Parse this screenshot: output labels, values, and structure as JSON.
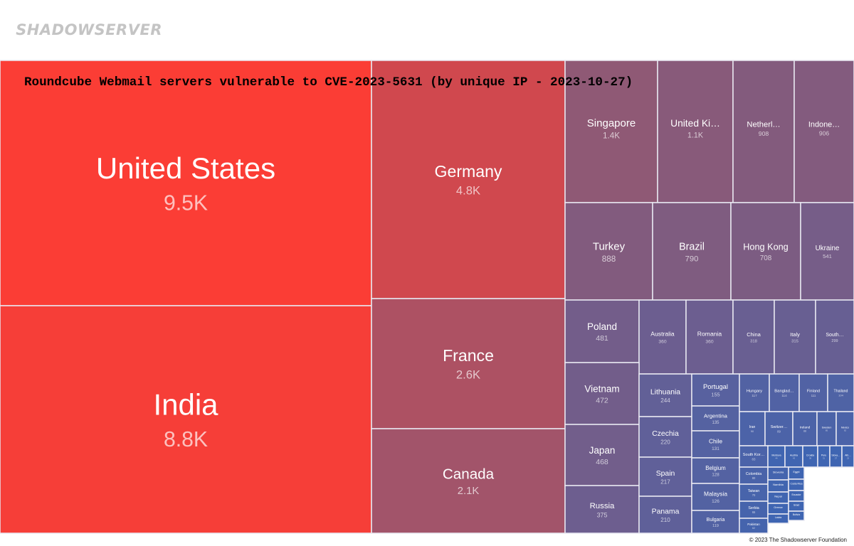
{
  "brand": {
    "logo_text": "SHADOWSERVER",
    "logo_icon": "shield-wolf-icon",
    "copyright": "© 2023 The Shadowserver Foundation"
  },
  "colors": {
    "high": "#fb3d35",
    "mid": "#8c5878",
    "low": "#3f65b2"
  },
  "chart_data": {
    "type": "treemap",
    "title": "Roundcube Webmail servers vulnerable to CVE-2023-5631 (by unique IP - 2023-10-27)",
    "items": [
      {
        "label": "United States",
        "value": 9500,
        "display": "9.5K"
      },
      {
        "label": "India",
        "value": 8800,
        "display": "8.8K"
      },
      {
        "label": "Germany",
        "value": 4800,
        "display": "4.8K"
      },
      {
        "label": "France",
        "value": 2600,
        "display": "2.6K"
      },
      {
        "label": "Canada",
        "value": 2100,
        "display": "2.1K"
      },
      {
        "label": "Singapore",
        "value": 1400,
        "display": "1.4K"
      },
      {
        "label": "United Ki…",
        "value": 1100,
        "display": "1.1K"
      },
      {
        "label": "Netherl…",
        "value": 908,
        "display": "908"
      },
      {
        "label": "Indone…",
        "value": 906,
        "display": "906"
      },
      {
        "label": "Turkey",
        "value": 888,
        "display": "888"
      },
      {
        "label": "Brazil",
        "value": 790,
        "display": "790"
      },
      {
        "label": "Hong Kong",
        "value": 708,
        "display": "708"
      },
      {
        "label": "Ukraine",
        "value": 541,
        "display": "541"
      },
      {
        "label": "Poland",
        "value": 481,
        "display": "481"
      },
      {
        "label": "Australia",
        "value": 360,
        "display": "360"
      },
      {
        "label": "Romania",
        "value": 360,
        "display": "360"
      },
      {
        "label": "China",
        "value": 318,
        "display": "318"
      },
      {
        "label": "Italy",
        "value": 315,
        "display": "315"
      },
      {
        "label": "South…",
        "value": 299,
        "display": "299"
      },
      {
        "label": "Vietnam",
        "value": 472,
        "display": "472"
      },
      {
        "label": "Japan",
        "value": 468,
        "display": "468"
      },
      {
        "label": "Russia",
        "value": 375,
        "display": "375"
      },
      {
        "label": "Lithuania",
        "value": 244,
        "display": "244"
      },
      {
        "label": "Czechia",
        "value": 220,
        "display": "220"
      },
      {
        "label": "Spain",
        "value": 217,
        "display": "217"
      },
      {
        "label": "Panama",
        "value": 210,
        "display": "210"
      },
      {
        "label": "Portugal",
        "value": 155,
        "display": "155"
      },
      {
        "label": "Argentina",
        "value": 135,
        "display": "135"
      },
      {
        "label": "Chile",
        "value": 131,
        "display": "131"
      },
      {
        "label": "Belgium",
        "value": 128,
        "display": "128"
      },
      {
        "label": "Malaysia",
        "value": 126,
        "display": "126"
      },
      {
        "label": "Bulgaria",
        "value": 119,
        "display": "119"
      },
      {
        "label": "Hungary",
        "value": 117,
        "display": "117"
      },
      {
        "label": "Banglad…",
        "value": 114,
        "display": "114"
      },
      {
        "label": "Finland",
        "value": 111,
        "display": "111"
      },
      {
        "label": "Thailand",
        "value": 104,
        "display": "104"
      },
      {
        "label": "Iran",
        "value": 90,
        "display": "90"
      },
      {
        "label": "Switzer…",
        "value": 89,
        "display": "89"
      },
      {
        "label": "Ireland",
        "value": 88,
        "display": "88"
      },
      {
        "label": "Sweden",
        "value": 85,
        "display": "85"
      },
      {
        "label": "Mexico",
        "value": 82,
        "display": "82"
      },
      {
        "label": "South Kor…",
        "value": 83,
        "display": "83"
      },
      {
        "label": "Moldova",
        "value": 44,
        "display": "44"
      },
      {
        "label": "Austria",
        "value": 43,
        "display": "43"
      },
      {
        "label": "Croatia",
        "value": 38,
        "display": "38"
      },
      {
        "label": "Peru",
        "value": 31,
        "display": "31"
      },
      {
        "label": "Slova…",
        "value": 27,
        "display": "27"
      },
      {
        "label": "Alb…",
        "value": 23,
        "display": "23"
      },
      {
        "label": "Colombia",
        "value": 80,
        "display": "80"
      },
      {
        "label": "Taiwan",
        "value": 70,
        "display": "70"
      },
      {
        "label": "Serbia",
        "value": 65,
        "display": "65"
      },
      {
        "label": "Pakistan",
        "value": 62,
        "display": "62"
      },
      {
        "label": "Slovenia",
        "value": 58,
        "display": ""
      },
      {
        "label": "Namibia",
        "value": 48,
        "display": ""
      },
      {
        "label": "Nepal",
        "value": 45,
        "display": ""
      },
      {
        "label": "Greece",
        "value": 42,
        "display": ""
      },
      {
        "label": "Latvia",
        "value": 40,
        "display": ""
      },
      {
        "label": "Egypt",
        "value": 40,
        "display": ""
      },
      {
        "label": "Costa Rica",
        "value": 36,
        "display": ""
      },
      {
        "label": "Ecuador",
        "value": 34,
        "display": ""
      },
      {
        "label": "Israel",
        "value": 32,
        "display": ""
      },
      {
        "label": "Bolivia",
        "value": 30,
        "display": ""
      }
    ]
  }
}
